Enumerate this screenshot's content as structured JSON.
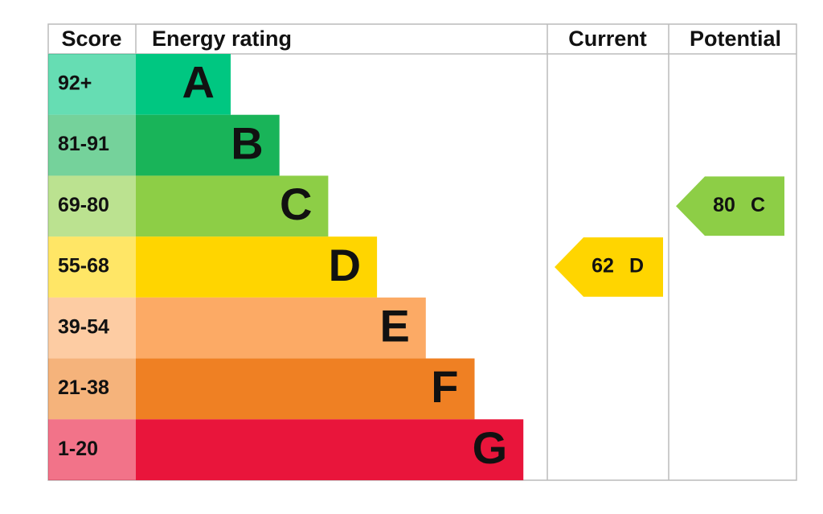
{
  "chart_data": {
    "type": "epc",
    "headers": [
      "Score",
      "Energy rating",
      "Current",
      "Potential"
    ],
    "bands": [
      {
        "score": "92+",
        "letter": "A",
        "color": "#00c781"
      },
      {
        "score": "81-91",
        "letter": "B",
        "color": "#19b459"
      },
      {
        "score": "69-80",
        "letter": "C",
        "color": "#8dce46"
      },
      {
        "score": "55-68",
        "letter": "D",
        "color": "#ffd500"
      },
      {
        "score": "39-54",
        "letter": "E",
        "color": "#fcaa65"
      },
      {
        "score": "21-38",
        "letter": "F",
        "color": "#ef8023"
      },
      {
        "score": "1-20",
        "letter": "G",
        "color": "#e9153b"
      }
    ],
    "current": {
      "value": 62,
      "letter": "D"
    },
    "potential": {
      "value": 80,
      "letter": "C"
    }
  }
}
